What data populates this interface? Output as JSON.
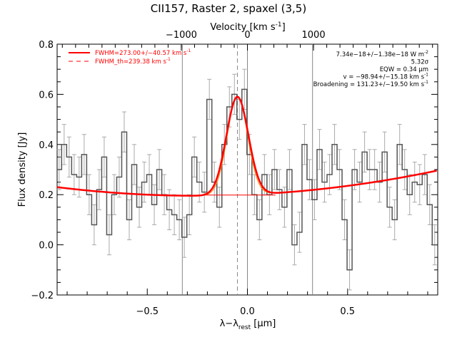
{
  "chart_data": {
    "type": "line",
    "title": "CII157, Raster 2, spaxel (3,5)",
    "xlabel": "λ−λ",
    "xlabel_sub": "rest",
    "xlabel_unit": " [μm]",
    "ylabel": "Flux density [Jy]",
    "top_axis_label": "Velocity [km s",
    "top_axis_sup": "-1",
    "top_axis_close": "]",
    "xlim": [
      -0.95,
      0.95
    ],
    "ylim": [
      -0.2,
      0.8
    ],
    "x_ticks": [
      -0.5,
      0.0,
      0.5
    ],
    "x_tick_labels": [
      "−0.5",
      "0.0",
      "0.5"
    ],
    "y_ticks": [
      -0.2,
      0.0,
      0.2,
      0.4,
      0.6,
      0.8
    ],
    "y_tick_labels": [
      "−0.2",
      "0.0",
      "0.2",
      "0.4",
      "0.6",
      "0.8"
    ],
    "top_ticks_x": [
      -0.33,
      0.0,
      0.33
    ],
    "top_tick_labels": [
      "−1000",
      "0",
      "1000"
    ],
    "vertical_lines_x": [
      -0.325,
      0.325
    ],
    "dashed_line_x": -0.05,
    "spectrum": {
      "x": [
        -0.94,
        -0.915,
        -0.89,
        -0.865,
        -0.84,
        -0.815,
        -0.79,
        -0.765,
        -0.74,
        -0.715,
        -0.69,
        -0.665,
        -0.64,
        -0.615,
        -0.59,
        -0.565,
        -0.54,
        -0.515,
        -0.49,
        -0.465,
        -0.44,
        -0.415,
        -0.39,
        -0.365,
        -0.34,
        -0.315,
        -0.29,
        -0.265,
        -0.24,
        -0.215,
        -0.19,
        -0.165,
        -0.14,
        -0.115,
        -0.09,
        -0.065,
        -0.04,
        -0.015,
        0.01,
        0.035,
        0.06,
        0.085,
        0.11,
        0.135,
        0.16,
        0.185,
        0.21,
        0.235,
        0.26,
        0.285,
        0.31,
        0.335,
        0.36,
        0.385,
        0.41,
        0.435,
        0.46,
        0.485,
        0.51,
        0.535,
        0.56,
        0.585,
        0.61,
        0.635,
        0.66,
        0.685,
        0.71,
        0.735,
        0.76,
        0.785,
        0.81,
        0.835,
        0.86,
        0.885,
        0.91,
        0.935
      ],
      "y": [
        0.3,
        0.4,
        0.35,
        0.28,
        0.27,
        0.36,
        0.2,
        0.08,
        0.22,
        0.35,
        0.04,
        0.2,
        0.27,
        0.45,
        0.1,
        0.32,
        0.15,
        0.25,
        0.28,
        0.16,
        0.3,
        0.2,
        0.14,
        0.12,
        0.1,
        0.03,
        0.12,
        0.35,
        0.25,
        0.21,
        0.58,
        0.25,
        0.15,
        0.4,
        0.55,
        0.6,
        0.5,
        0.62,
        0.36,
        0.2,
        0.1,
        0.28,
        0.2,
        0.3,
        0.22,
        0.15,
        0.3,
        0.0,
        0.05,
        0.4,
        0.26,
        0.18,
        0.38,
        0.25,
        0.28,
        0.4,
        0.3,
        0.1,
        -0.1,
        0.3,
        0.25,
        0.37,
        0.3,
        0.3,
        0.25,
        0.37,
        0.15,
        0.1,
        0.4,
        0.3,
        0.2,
        0.25,
        0.24,
        0.28,
        0.16,
        0.0
      ],
      "yerr": 0.08,
      "color": "#555555"
    },
    "baseline_continuum": {
      "a": 0.2,
      "b": 0.035,
      "c": 0.07,
      "color": "#ff0000"
    },
    "gaussian_fit": {
      "amplitude": 0.392,
      "center": -0.05,
      "sigma": 0.055,
      "color": "#ff0000"
    },
    "gaussian_fit_th": {
      "amplitude": 0.39,
      "center": -0.05,
      "sigma": 0.051,
      "color": "#ff7f00"
    },
    "legend": [
      {
        "label": "FWHM=273.00+/−40.57 km s",
        "sup": "-1",
        "style": "solid",
        "color": "#ff0000"
      },
      {
        "label": "FWHM_th=239.38 km s",
        "sup": "-1",
        "style": "dashed",
        "color": "#ff0000"
      }
    ],
    "legend_position": "top-left",
    "annotations": [
      {
        "text": "7.34e−18+/−1.38e−18 W m",
        "sup": "-2"
      },
      {
        "text": "5.32σ",
        "sup": ""
      },
      {
        "text": "EQW = 0.34 μm",
        "sup": ""
      },
      {
        "text": "v = −98.94+/−15.18 km s",
        "sup": "-1"
      },
      {
        "text": "Broadening = 131.23+/−19.50 km s",
        "sup": "-1"
      }
    ],
    "annotations_position": "top-right",
    "grid": false
  }
}
